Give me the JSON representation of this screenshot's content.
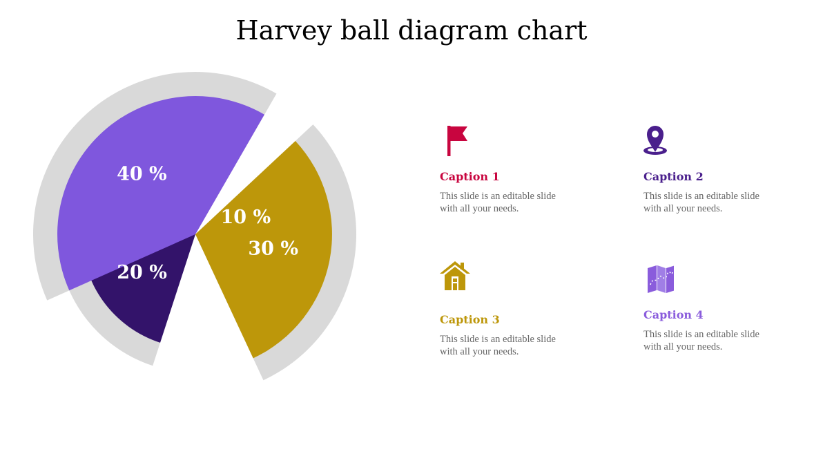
{
  "title": "Harvey ball diagram chart",
  "chart_data": {
    "type": "pie",
    "categories": [
      "10 %",
      "20 %",
      "30 %",
      "40 %"
    ],
    "values": [
      10,
      20,
      30,
      40
    ],
    "colors": [
      "#c8053f",
      "#33136a",
      "#bd970a",
      "#7f57dd"
    ],
    "ring_color": "#d9d9d9"
  },
  "captions": [
    {
      "title": "Caption 1",
      "text": "This slide is an editable slide with all your needs.",
      "icon": "flag-icon",
      "color": "#c8053f"
    },
    {
      "title": "Caption 2",
      "text": "This slide is an editable slide with all your needs.",
      "icon": "location-pin-icon",
      "color": "#4a1f8c"
    },
    {
      "title": "Caption 3",
      "text": "This slide is an editable slide with all your needs.",
      "icon": "house-icon",
      "color": "#bd970a"
    },
    {
      "title": "Caption 4",
      "text": "This slide is an editable slide with all your needs.",
      "icon": "map-icon",
      "color": "#8a5cdc"
    }
  ]
}
